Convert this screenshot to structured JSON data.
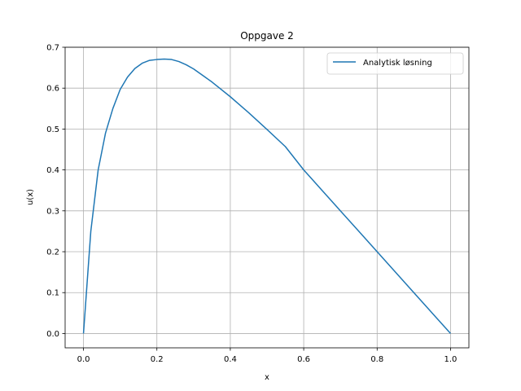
{
  "chart_data": {
    "type": "line",
    "title": "Oppgave 2",
    "xlabel": "x",
    "ylabel": "u(x)",
    "xlim": [
      -0.05,
      1.05
    ],
    "ylim": [
      -0.035,
      0.7
    ],
    "grid": true,
    "legend_position": "top-right",
    "x_ticks": [
      "0.0",
      "0.2",
      "0.4",
      "0.6",
      "0.8",
      "1.0"
    ],
    "y_ticks": [
      "0.0",
      "0.1",
      "0.2",
      "0.3",
      "0.4",
      "0.5",
      "0.6",
      "0.7"
    ],
    "series": [
      {
        "name": "Analytisk løsning",
        "color": "#1f77b4",
        "x": [
          0.0,
          0.02,
          0.04,
          0.06,
          0.08,
          0.1,
          0.12,
          0.14,
          0.16,
          0.18,
          0.2,
          0.22,
          0.24,
          0.26,
          0.28,
          0.3,
          0.35,
          0.4,
          0.45,
          0.5,
          0.55,
          0.6,
          0.65,
          0.7,
          0.75,
          0.8,
          0.85,
          0.9,
          0.95,
          1.0
        ],
        "y": [
          0.0,
          0.25,
          0.4,
          0.49,
          0.55,
          0.597,
          0.627,
          0.648,
          0.661,
          0.668,
          0.67,
          0.671,
          0.67,
          0.665,
          0.657,
          0.647,
          0.615,
          0.579,
          0.54,
          0.499,
          0.457,
          0.4,
          0.35,
          0.3,
          0.25,
          0.2,
          0.15,
          0.1,
          0.05,
          0.0
        ]
      }
    ]
  }
}
